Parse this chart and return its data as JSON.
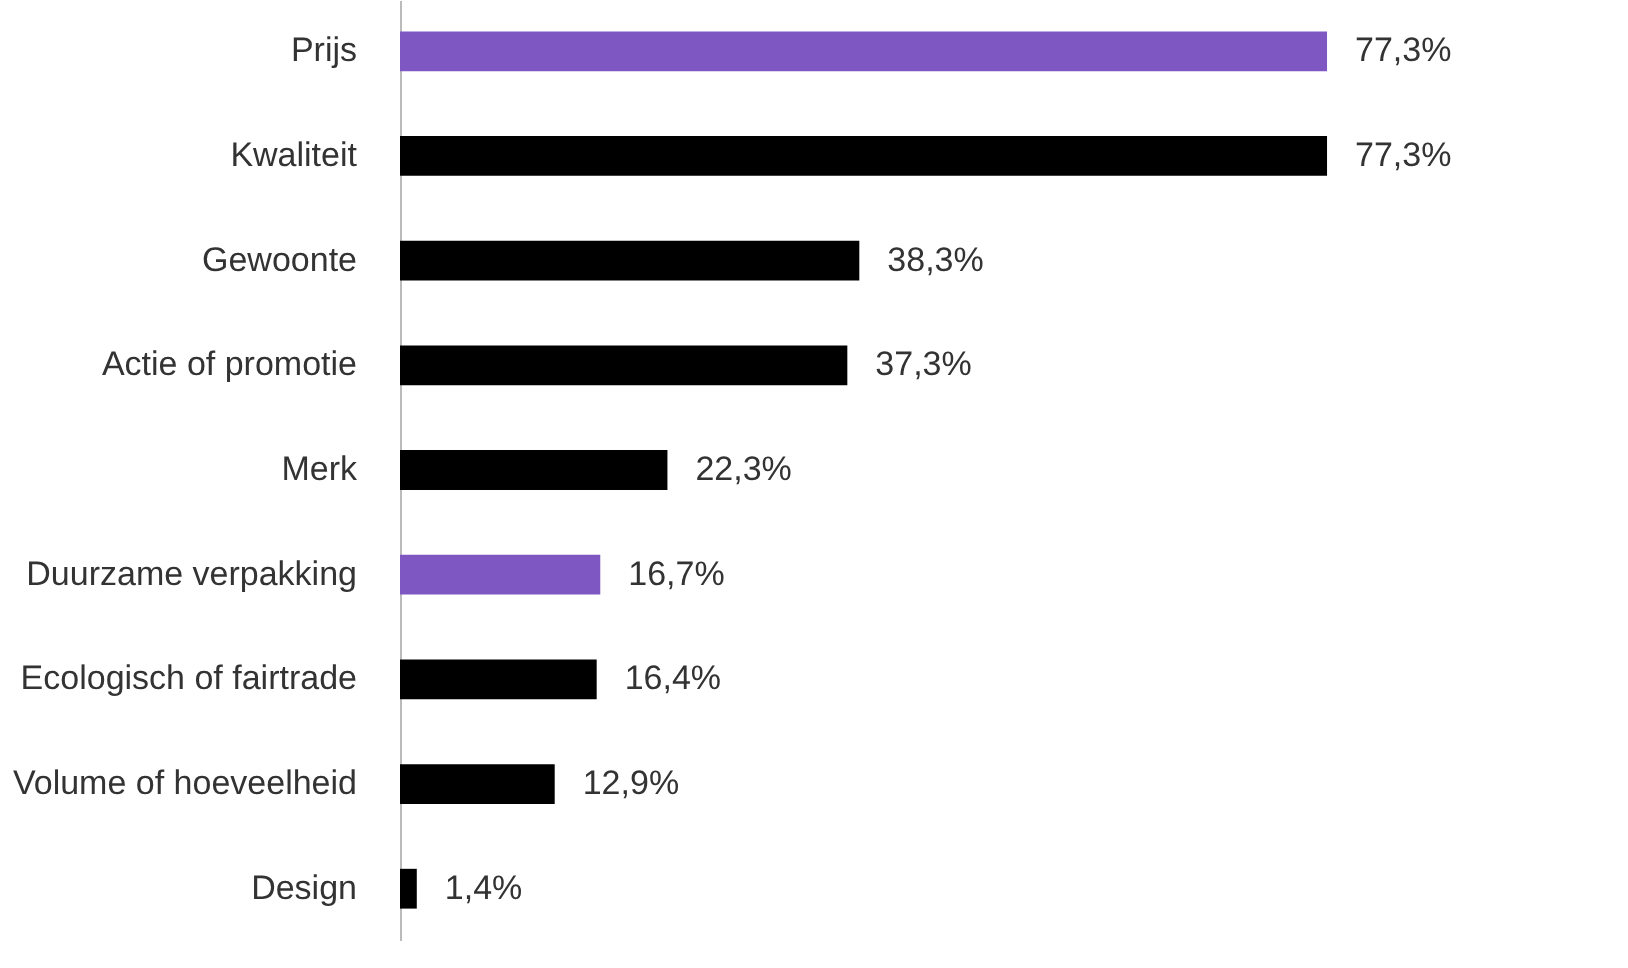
{
  "chart_data": {
    "type": "bar",
    "orientation": "horizontal",
    "categories": [
      "Prijs",
      "Kwaliteit",
      "Gewoonte",
      "Actie of promotie",
      "Merk",
      "Duurzame verpakking",
      "Ecologisch of fairtrade",
      "Volume of hoeveelheid",
      "Design"
    ],
    "values": [
      77.3,
      77.3,
      38.3,
      37.3,
      22.3,
      16.7,
      16.4,
      12.9,
      1.4
    ],
    "colors": [
      "#7e57c2",
      "#000000",
      "#000000",
      "#000000",
      "#000000",
      "#7e57c2",
      "#000000",
      "#000000",
      "#000000"
    ],
    "value_labels": [
      "77,3%",
      "77,3%",
      "38,3%",
      "37,3%",
      "22,3%",
      "16,7%",
      "16,4%",
      "12,9%",
      "1,4%"
    ],
    "grid": false,
    "legend": false
  }
}
